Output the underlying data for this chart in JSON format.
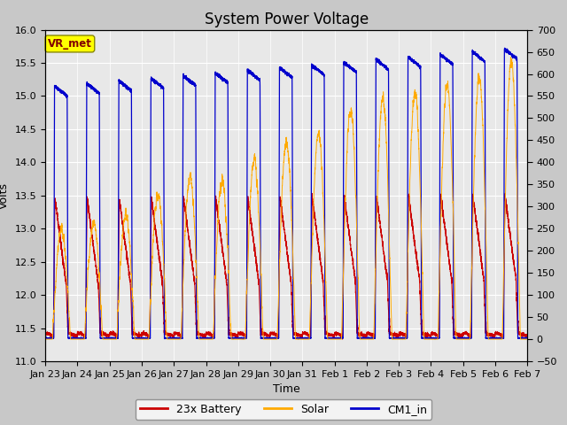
{
  "title": "System Power Voltage",
  "xlabel": "Time",
  "ylabel": "Volts",
  "xlim_days": 15,
  "ylim_left": [
    11.0,
    16.0
  ],
  "ylim_right": [
    -50,
    700
  ],
  "yticks_left": [
    11.0,
    11.5,
    12.0,
    12.5,
    13.0,
    13.5,
    14.0,
    14.5,
    15.0,
    15.5,
    16.0
  ],
  "yticks_right": [
    -50,
    0,
    50,
    100,
    150,
    200,
    250,
    300,
    350,
    400,
    450,
    500,
    550,
    600,
    650,
    700
  ],
  "fig_bg_color": "#c8c8c8",
  "plot_bg_color": "#e8e8e8",
  "battery_color": "#cc0000",
  "solar_color": "#ffaa00",
  "cm1_color": "#0000cc",
  "legend_labels": [
    "23x Battery",
    "Solar",
    "CM1_in"
  ],
  "vr_met_label": "VR_met",
  "vr_met_box_color": "#ffff00",
  "vr_met_text_color": "#800000",
  "title_fontsize": 12,
  "axis_fontsize": 9,
  "tick_fontsize": 8,
  "legend_fontsize": 9,
  "num_days": 15,
  "seed": 42,
  "tick_labels": [
    "Jan 23",
    "Jan 24",
    "Jan 25",
    "Jan 26",
    "Jan 27",
    "Jan 28",
    "Jan 29",
    "Jan 30",
    "Jan 31",
    "Feb 1",
    "Feb 2",
    "Feb 3",
    "Feb 4",
    "Feb 5",
    "Feb 6",
    "Feb 7"
  ]
}
